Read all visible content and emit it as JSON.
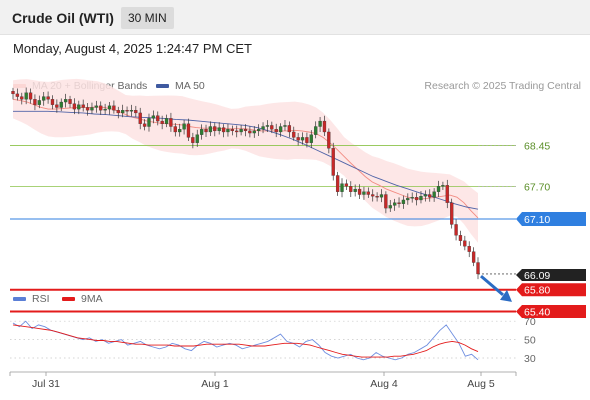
{
  "header": {
    "title": "Crude Oil (WTI)",
    "timeframe": "30 MIN"
  },
  "datetime": "Monday, August 4, 2025 1:24:47 PM CET",
  "legend_top": [
    {
      "label": "MA 20 + Bollinger Bands",
      "color": "#f28b82"
    },
    {
      "label": "MA 50",
      "color": "#3f5aa0"
    }
  ],
  "copyright": "Research © 2025 Trading Central",
  "legend_bottom": [
    {
      "label": "RSI",
      "color": "#5b7fd6"
    },
    {
      "label": "9MA",
      "color": "#e31b1b"
    }
  ],
  "price_levels": [
    {
      "label": "68.45",
      "value": 68.45,
      "kind": "resistance",
      "color": "#8bc34a"
    },
    {
      "label": "67.70",
      "value": 67.7,
      "kind": "resistance",
      "color": "#8bc34a"
    },
    {
      "label": "67.10",
      "value": 67.1,
      "kind": "pivot",
      "color": "#2f7fe0"
    },
    {
      "label": "66.09",
      "value": 66.09,
      "kind": "last",
      "color": "#222222"
    },
    {
      "label": "65.80",
      "value": 65.8,
      "kind": "support",
      "color": "#e31b1b"
    },
    {
      "label": "65.40",
      "value": 65.4,
      "kind": "support",
      "color": "#e31b1b"
    }
  ],
  "rsi_levels": [
    {
      "label": "70",
      "value": 70
    },
    {
      "label": "50",
      "value": 50
    },
    {
      "label": "30",
      "value": 30
    }
  ],
  "x_axis_labels": [
    "Jul 31",
    "Aug 1",
    "Aug 4",
    "Aug 5"
  ],
  "chart_data": {
    "type": "candlestick",
    "title": "Crude Oil (WTI)",
    "timeframe": "30 MIN",
    "price_ylim": [
      65.2,
      69.6
    ],
    "rsi_ylim": [
      20,
      80
    ],
    "closes": [
      69.4,
      69.35,
      69.3,
      69.42,
      69.3,
      69.2,
      69.28,
      69.35,
      69.3,
      69.2,
      69.15,
      69.25,
      69.3,
      69.22,
      69.12,
      69.2,
      69.15,
      69.1,
      69.15,
      69.18,
      69.1,
      69.12,
      69.18,
      69.1,
      69.05,
      69.1,
      69.08,
      69.1,
      69.05,
      68.85,
      68.8,
      68.95,
      69.0,
      68.9,
      68.85,
      68.95,
      68.8,
      68.7,
      68.75,
      68.85,
      68.6,
      68.5,
      68.65,
      68.75,
      68.7,
      68.8,
      68.72,
      68.78,
      68.7,
      68.75,
      68.72,
      68.7,
      68.75,
      68.72,
      68.68,
      68.72,
      68.75,
      68.8,
      68.82,
      68.75,
      68.7,
      68.8,
      68.82,
      68.7,
      68.6,
      68.55,
      68.6,
      68.5,
      68.65,
      68.8,
      68.9,
      68.7,
      68.4,
      67.9,
      67.6,
      67.75,
      67.7,
      67.6,
      67.65,
      67.55,
      67.6,
      67.55,
      67.52,
      67.5,
      67.55,
      67.3,
      67.35,
      67.4,
      67.38,
      67.45,
      67.48,
      67.5,
      67.45,
      67.52,
      67.55,
      67.5,
      67.6,
      67.7,
      67.72,
      67.4,
      67.0,
      66.8,
      66.7,
      66.6,
      66.5,
      66.3,
      66.09
    ],
    "ma20": [
      69.3,
      69.28,
      69.25,
      69.2,
      69.15,
      69.12,
      69.12,
      69.13,
      69.14,
      69.15,
      69.15,
      69.15,
      69.16,
      69.15,
      69.12,
      69.08,
      69.02,
      68.97,
      68.94,
      68.9,
      68.88,
      68.86,
      68.85,
      68.84,
      68.83,
      68.8,
      68.78,
      68.77,
      68.77,
      68.77,
      68.76,
      68.76,
      68.76,
      68.76,
      68.74,
      68.72,
      68.72,
      68.72,
      68.72,
      68.72,
      68.73,
      68.72,
      68.7,
      68.67,
      68.6,
      68.5,
      68.38,
      68.25,
      68.12,
      68.0,
      67.88,
      67.78,
      67.72,
      67.65,
      67.6,
      67.55,
      67.5,
      67.48,
      67.47,
      67.48,
      67.5,
      67.52,
      67.54,
      67.5,
      67.4,
      67.25,
      67.12
    ],
    "ma50": [
      69.08,
      69.08,
      69.08,
      69.08,
      69.07,
      69.06,
      69.05,
      69.03,
      69.02,
      69.0,
      68.98,
      68.97,
      68.96,
      68.95,
      68.93,
      68.92,
      68.9,
      68.88,
      68.86,
      68.84,
      68.82,
      68.78,
      68.72,
      68.65,
      68.57,
      68.48,
      68.38,
      68.28,
      68.18,
      68.08,
      67.98,
      67.88,
      67.8,
      67.72,
      67.65,
      67.58,
      67.52,
      67.45,
      67.38,
      67.32,
      67.28
    ],
    "rsi": [
      68,
      64,
      70,
      62,
      66,
      64,
      60,
      58,
      56,
      54,
      52,
      50,
      52,
      48,
      50,
      46,
      48,
      50,
      44,
      46,
      48,
      44,
      42,
      40,
      42,
      46,
      44,
      40,
      38,
      44,
      48,
      46,
      42,
      44,
      46,
      44,
      40,
      42,
      44,
      46,
      48,
      52,
      56,
      48,
      46,
      42,
      48,
      50,
      44,
      36,
      32,
      30,
      32,
      34,
      30,
      28,
      30,
      36,
      32,
      30,
      28,
      30,
      34,
      36,
      40,
      44,
      52,
      60,
      66,
      56,
      46,
      32,
      34,
      28
    ],
    "rsi_ma": [
      66,
      65,
      64,
      63,
      62,
      61,
      60,
      58,
      56,
      54,
      52,
      51,
      50,
      49,
      49,
      48,
      48,
      47,
      46,
      45,
      45,
      44,
      44,
      44,
      44,
      43,
      43,
      43,
      43,
      44,
      45,
      45,
      45,
      45,
      45,
      45,
      44,
      43,
      43,
      43,
      44,
      45,
      46,
      46,
      46,
      45,
      44,
      42,
      40,
      38,
      36,
      34,
      33,
      32,
      31,
      31,
      31,
      31,
      31,
      32,
      32,
      33,
      34,
      36,
      38,
      42,
      45,
      47,
      48,
      47,
      44,
      40,
      37
    ]
  }
}
